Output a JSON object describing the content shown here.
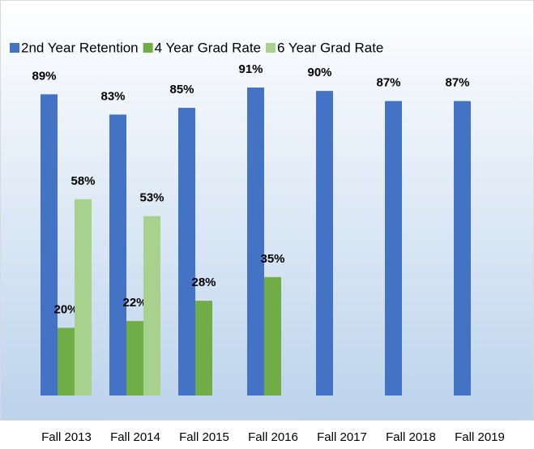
{
  "chart_data": {
    "type": "bar",
    "categories": [
      "Fall 2013",
      "Fall 2014",
      "Fall 2015",
      "Fall 2016",
      "Fall 2017",
      "Fall 2018",
      "Fall 2019"
    ],
    "series": [
      {
        "name": "2nd Year Retention",
        "color": "#4472c4",
        "values": [
          89,
          83,
          85,
          91,
          90,
          87,
          87
        ],
        "value_labels": [
          "89%",
          "83%",
          "85%",
          "91%",
          "90%",
          "87%",
          "87%"
        ]
      },
      {
        "name": "4 Year Grad Rate",
        "color": "#70ad47",
        "values": [
          20,
          22,
          28,
          35,
          null,
          null,
          null
        ],
        "value_labels": [
          "20%",
          "22%",
          "28%",
          "35%",
          null,
          null,
          null
        ]
      },
      {
        "name": "6 Year Grad Rate",
        "color": "#a9d18e",
        "values": [
          58,
          53,
          null,
          null,
          null,
          null,
          null
        ],
        "value_labels": [
          "58%",
          "53%",
          null,
          null,
          null,
          null,
          null
        ]
      }
    ],
    "legend": "top"
  }
}
